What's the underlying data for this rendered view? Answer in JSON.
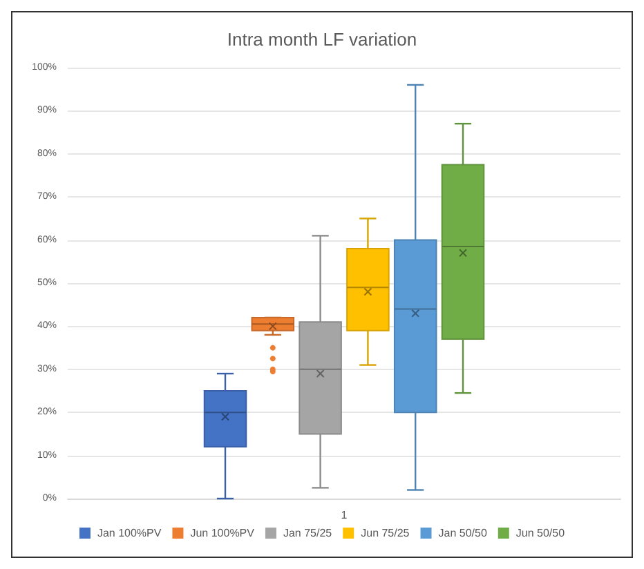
{
  "chart_data": {
    "type": "box",
    "title": "Intra month LF variation",
    "categories": [
      "1"
    ],
    "ylim": [
      0,
      100
    ],
    "yticks": [
      {
        "value": 0,
        "label": "0%"
      },
      {
        "value": 10,
        "label": "10%"
      },
      {
        "value": 20,
        "label": "20%"
      },
      {
        "value": 30,
        "label": "30%"
      },
      {
        "value": 40,
        "label": "40%"
      },
      {
        "value": 50,
        "label": "50%"
      },
      {
        "value": 60,
        "label": "60%"
      },
      {
        "value": 70,
        "label": "70%"
      },
      {
        "value": 80,
        "label": "80%"
      },
      {
        "value": 90,
        "label": "90%"
      },
      {
        "value": 100,
        "label": "100%"
      }
    ],
    "grid": "y",
    "legend": "bottom",
    "series": [
      {
        "name": "Jan 100%PV",
        "color": "#4472c4",
        "boxes": [
          {
            "low": 0,
            "q1": 12,
            "median": 20,
            "q3": 25,
            "high": 29,
            "mean": 19
          }
        ]
      },
      {
        "name": "Jun 100%PV",
        "color": "#ed7d31",
        "boxes": [
          {
            "low": 38,
            "q1": 39,
            "median": 40.5,
            "q3": 42,
            "high": 42,
            "mean": 40,
            "outliers": [
              35,
              32.5,
              30,
              29.5
            ]
          }
        ]
      },
      {
        "name": "Jan 75/25",
        "color": "#a5a5a5",
        "boxes": [
          {
            "low": 2.5,
            "q1": 15,
            "median": 30,
            "q3": 41,
            "high": 61,
            "mean": 29
          }
        ]
      },
      {
        "name": "Jun 75/25",
        "color": "#ffc000",
        "boxes": [
          {
            "low": 31,
            "q1": 39,
            "median": 49,
            "q3": 58,
            "high": 65,
            "mean": 48
          }
        ]
      },
      {
        "name": "Jan 50/50",
        "color": "#5b9bd5",
        "boxes": [
          {
            "low": 2,
            "q1": 20,
            "median": 44,
            "q3": 60,
            "high": 96,
            "mean": 43
          }
        ]
      },
      {
        "name": "Jun 50/50",
        "color": "#70ad47",
        "boxes": [
          {
            "low": 24.5,
            "q1": 37,
            "median": 58.5,
            "q3": 77.5,
            "high": 87,
            "mean": 57
          }
        ]
      }
    ]
  }
}
